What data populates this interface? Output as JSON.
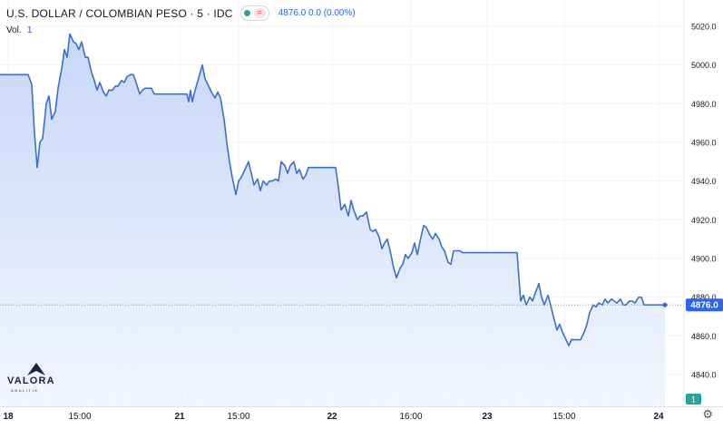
{
  "header": {
    "title": "U.S. DOLLAR / COLOMBIAN PESO · 5 · IDC",
    "badge_sign": "=",
    "quote": "4876.0  0.0 (0.00%)"
  },
  "volume": {
    "label": "Vol.",
    "value": "1"
  },
  "logo": {
    "word": "VALORA",
    "sub": "ANALITIK"
  },
  "icons": {
    "settings": "gear-icon",
    "status": "green-dot-icon"
  },
  "colors": {
    "line": "#3a6fcf",
    "area_top": "#c5d6f8",
    "area_bottom": "#f1f5fe",
    "vol_up": "#8fd3ca",
    "vol_down": "#f2a9a9",
    "last_price_tag": "#2962ff",
    "volume_tag": "#26a69a"
  },
  "chart_data": {
    "type": "area",
    "y_axis": {
      "ticks": [
        "5020.0",
        "5000.0",
        "4980.0",
        "4960.0",
        "4940.0",
        "4920.0",
        "4900.0",
        "4880.0",
        "4860.0",
        "4840.0"
      ],
      "range": [
        4839,
        5022
      ]
    },
    "x_axis": {
      "labels": [
        "18",
        "15:00",
        "21",
        "15:00",
        "22",
        "16:00",
        "23",
        "15:00",
        "24"
      ]
    },
    "last_price": {
      "value": 4876.0,
      "label": "4876.0"
    },
    "volume_last": {
      "label": "1"
    },
    "series": [
      {
        "values": [
          [
            0,
            4995
          ],
          [
            31,
            4995
          ],
          [
            35,
            4990
          ],
          [
            38,
            4965
          ],
          [
            41,
            4947
          ],
          [
            44,
            4960
          ],
          [
            47,
            4962
          ],
          [
            51,
            4980
          ],
          [
            54,
            4984
          ],
          [
            57,
            4972
          ],
          [
            61,
            4976
          ],
          [
            64,
            4988
          ],
          [
            68,
            4998
          ],
          [
            71,
            5008
          ],
          [
            74,
            5004
          ],
          [
            77,
            5016
          ],
          [
            81,
            5012
          ],
          [
            84,
            5011
          ],
          [
            87,
            5008
          ],
          [
            90,
            5012
          ],
          [
            94,
            5004
          ],
          [
            97,
            5004
          ],
          [
            101,
            4996
          ],
          [
            104,
            4992
          ],
          [
            107,
            4987
          ],
          [
            110,
            4991
          ],
          [
            114,
            4986
          ],
          [
            117,
            4984
          ],
          [
            120,
            4987
          ],
          [
            124,
            4987
          ],
          [
            127,
            4989
          ],
          [
            130,
            4989
          ],
          [
            134,
            4992
          ],
          [
            137,
            4991
          ],
          [
            140,
            4994
          ],
          [
            144,
            4995
          ],
          [
            147,
            4995
          ],
          [
            150,
            4991
          ],
          [
            154,
            4985
          ],
          [
            157,
            4987
          ],
          [
            160,
            4988
          ],
          [
            164,
            4988
          ],
          [
            167,
            4988
          ],
          [
            170,
            4985
          ],
          [
            174,
            4985
          ],
          [
            177,
            4985
          ],
          [
            180,
            4985
          ],
          [
            184,
            4985
          ],
          [
            187,
            4985
          ],
          [
            190,
            4985
          ],
          [
            194,
            4985
          ],
          [
            197,
            4985
          ],
          [
            200,
            4985
          ],
          [
            203,
            4985
          ],
          [
            206,
            4985
          ],
          [
            208,
            4981
          ],
          [
            210,
            4987
          ],
          [
            212,
            4981
          ],
          [
            214,
            4985
          ],
          [
            217,
            4990
          ],
          [
            220,
            4995
          ],
          [
            223,
            5000
          ],
          [
            226,
            4993
          ],
          [
            230,
            4989
          ],
          [
            233,
            4986
          ],
          [
            237,
            4983
          ],
          [
            240,
            4986
          ],
          [
            243,
            4983
          ],
          [
            247,
            4972
          ],
          [
            250,
            4960
          ],
          [
            253,
            4950
          ],
          [
            256,
            4942
          ],
          [
            260,
            4933
          ],
          [
            263,
            4940
          ],
          [
            266,
            4942
          ],
          [
            270,
            4946
          ],
          [
            274,
            4950
          ],
          [
            277,
            4944
          ],
          [
            280,
            4938
          ],
          [
            284,
            4941
          ],
          [
            287,
            4935
          ],
          [
            290,
            4940
          ],
          [
            294,
            4938
          ],
          [
            297,
            4940
          ],
          [
            300,
            4940
          ],
          [
            304,
            4941
          ],
          [
            307,
            4940
          ],
          [
            310,
            4950
          ],
          [
            314,
            4948
          ],
          [
            317,
            4944
          ],
          [
            320,
            4948
          ],
          [
            324,
            4950
          ],
          [
            327,
            4944
          ],
          [
            330,
            4946
          ],
          [
            334,
            4941
          ],
          [
            337,
            4943
          ],
          [
            340,
            4947
          ],
          [
            344,
            4947
          ],
          [
            350,
            4947
          ],
          [
            360,
            4947
          ],
          [
            370,
            4947
          ],
          [
            373,
            4937
          ],
          [
            376,
            4925
          ],
          [
            380,
            4928
          ],
          [
            384,
            4922
          ],
          [
            387,
            4930
          ],
          [
            390,
            4925
          ],
          [
            394,
            4920
          ],
          [
            397,
            4922
          ],
          [
            400,
            4922
          ],
          [
            404,
            4924
          ],
          [
            408,
            4915
          ],
          [
            411,
            4914
          ],
          [
            414,
            4915
          ],
          [
            418,
            4911
          ],
          [
            421,
            4905
          ],
          [
            424,
            4908
          ],
          [
            427,
            4910
          ],
          [
            431,
            4902
          ],
          [
            434,
            4895
          ],
          [
            437,
            4890
          ],
          [
            441,
            4895
          ],
          [
            444,
            4897
          ],
          [
            447,
            4902
          ],
          [
            450,
            4900
          ],
          [
            454,
            4903
          ],
          [
            457,
            4908
          ],
          [
            460,
            4902
          ],
          [
            464,
            4911
          ],
          [
            467,
            4917
          ],
          [
            470,
            4916
          ],
          [
            474,
            4912
          ],
          [
            477,
            4910
          ],
          [
            480,
            4913
          ],
          [
            484,
            4910
          ],
          [
            487,
            4906
          ],
          [
            490,
            4904
          ],
          [
            494,
            4898
          ],
          [
            497,
            4897
          ],
          [
            500,
            4904
          ],
          [
            504,
            4904
          ],
          [
            507,
            4904
          ],
          [
            510,
            4903
          ],
          [
            514,
            4903
          ],
          [
            520,
            4903
          ],
          [
            530,
            4903
          ],
          [
            540,
            4903
          ],
          [
            550,
            4903
          ],
          [
            560,
            4903
          ],
          [
            570,
            4903
          ],
          [
            572,
            4890
          ],
          [
            574,
            4878
          ],
          [
            577,
            4881
          ],
          [
            580,
            4876
          ],
          [
            584,
            4880
          ],
          [
            587,
            4878
          ],
          [
            590,
            4882
          ],
          [
            594,
            4887
          ],
          [
            597,
            4880
          ],
          [
            600,
            4876
          ],
          [
            604,
            4881
          ],
          [
            607,
            4876
          ],
          [
            610,
            4870
          ],
          [
            614,
            4863
          ],
          [
            617,
            4866
          ],
          [
            620,
            4862
          ],
          [
            624,
            4858
          ],
          [
            627,
            4855
          ],
          [
            630,
            4858
          ],
          [
            634,
            4858
          ],
          [
            637,
            4858
          ],
          [
            640,
            4858
          ],
          [
            644,
            4862
          ],
          [
            647,
            4866
          ],
          [
            650,
            4872
          ],
          [
            654,
            4876
          ],
          [
            657,
            4875
          ],
          [
            660,
            4877
          ],
          [
            664,
            4876
          ],
          [
            667,
            4879
          ],
          [
            670,
            4877
          ],
          [
            674,
            4879
          ],
          [
            677,
            4878
          ],
          [
            680,
            4877
          ],
          [
            684,
            4879
          ],
          [
            687,
            4876
          ],
          [
            690,
            4876
          ],
          [
            694,
            4878
          ],
          [
            697,
            4878
          ],
          [
            700,
            4877
          ],
          [
            704,
            4880
          ],
          [
            707,
            4880
          ],
          [
            710,
            4876
          ],
          [
            720,
            4876
          ],
          [
            730,
            4876
          ],
          [
            733,
            4876
          ]
        ]
      }
    ]
  }
}
